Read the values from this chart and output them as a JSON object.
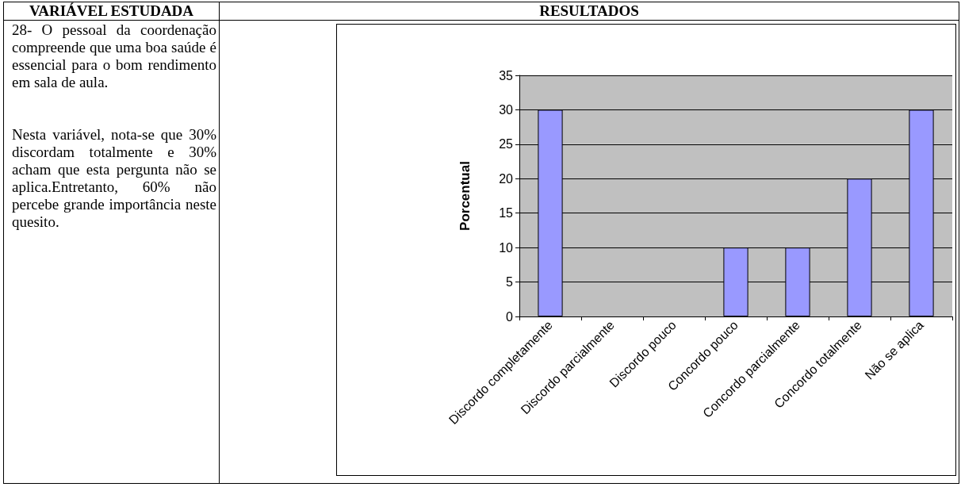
{
  "chart_data": {
    "type": "bar",
    "ylabel": "Porcentual",
    "categories": [
      "Discordo completamente",
      "Discordo parcialmente",
      "Discordo pouco",
      "Concordo pouco",
      "Concordo parcialmente",
      "Concordo totalmente",
      "Não se aplica"
    ],
    "values": [
      30,
      0,
      0,
      10,
      10,
      20,
      30
    ],
    "color": "#9999ff",
    "ylim": [
      0,
      35
    ],
    "yticks": [
      0,
      5,
      10,
      15,
      20,
      25,
      30,
      35
    ],
    "grid": "y",
    "annotations": [
      "VARIÁVEL ESTUDADA",
      "RESULTADOS",
      "28- O pessoal da coordenação compreende que uma boa saúde é essencial para o bom rendimento em sala de aula.",
      "Nesta variável, nota-se que 30% discordam totalmente e 30% acham que esta pergunta não se aplica.Entretanto, 60% não percebe grande importância neste quesito."
    ]
  }
}
